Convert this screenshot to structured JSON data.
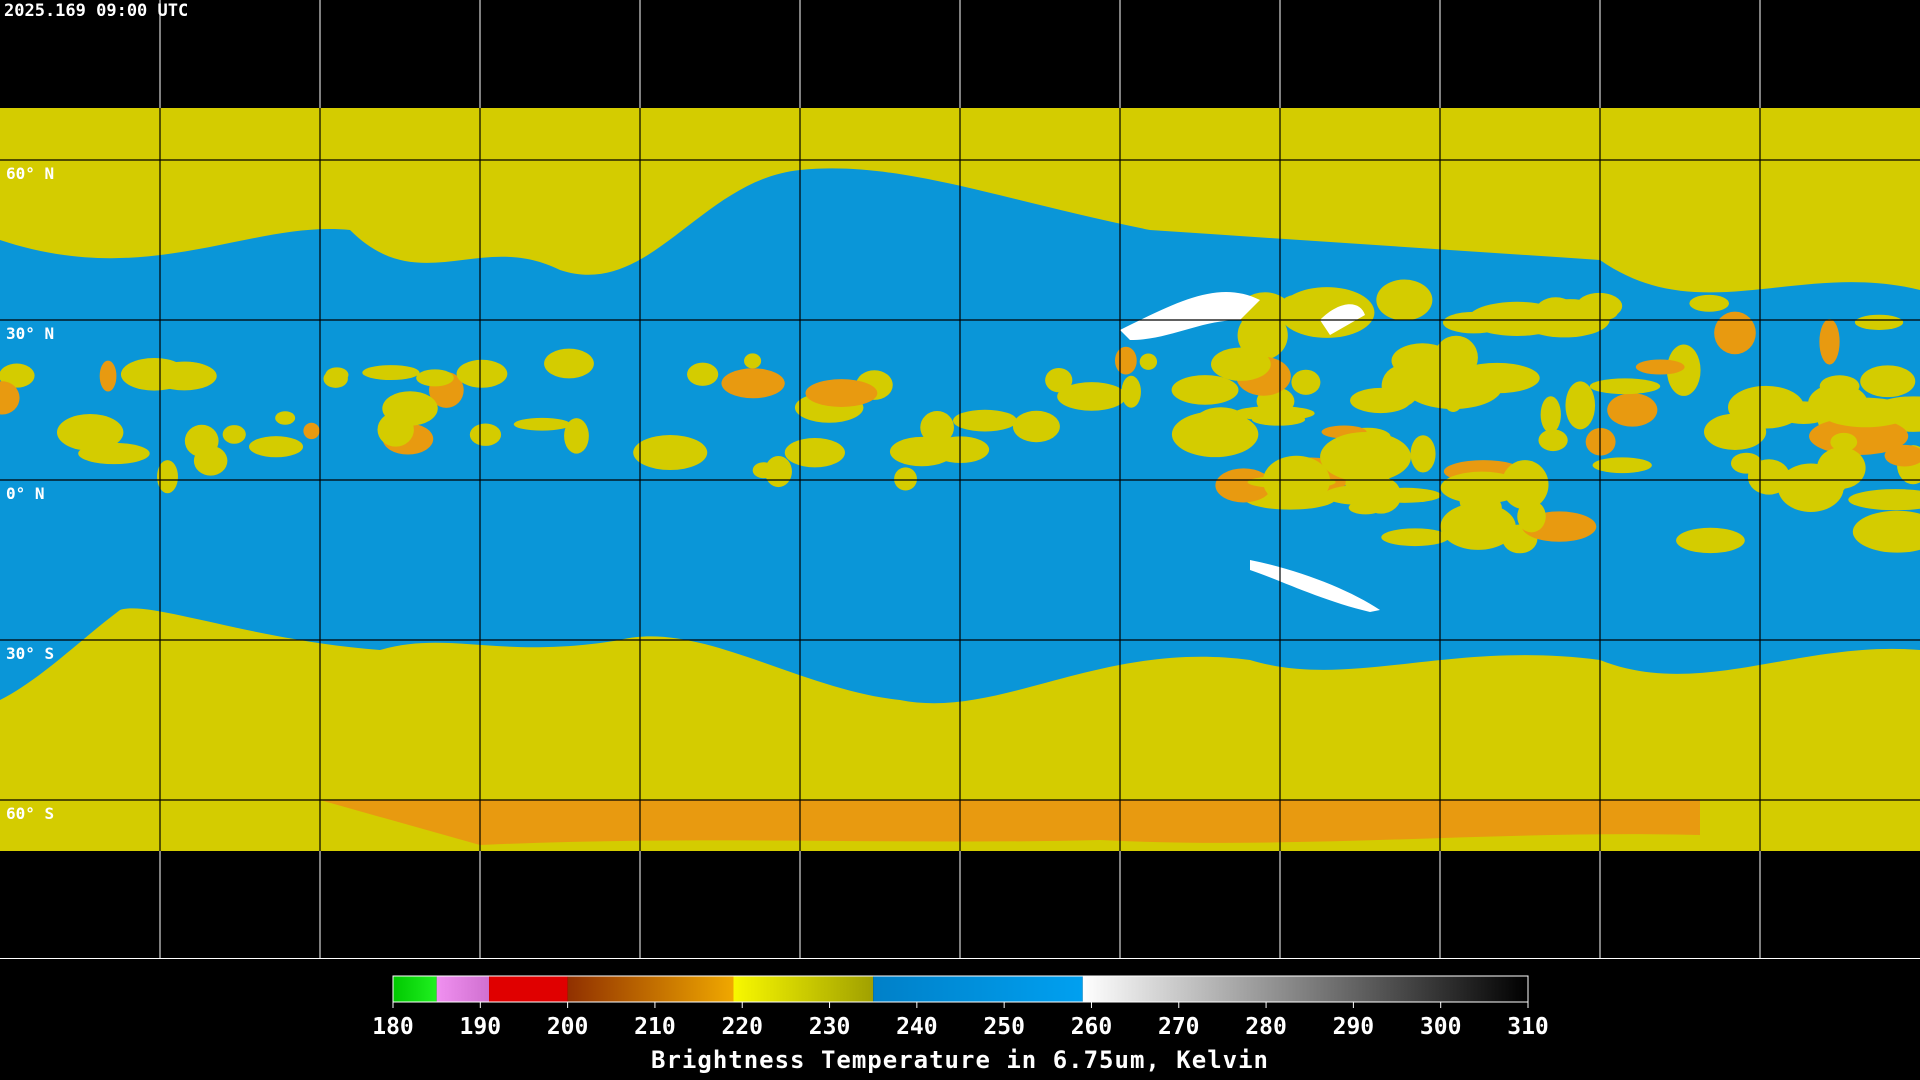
{
  "header": {
    "timestamp": "2025.169 09:00 UTC"
  },
  "map": {
    "lat_labels": [
      "60° N",
      "30° N",
      "0° N",
      "30° S",
      "60° S"
    ]
  },
  "colorbar": {
    "title": "Brightness Temperature in 6.75um, Kelvin",
    "range": [
      180,
      310
    ],
    "ticks": [
      180,
      190,
      200,
      210,
      220,
      230,
      240,
      250,
      260,
      270,
      280,
      290,
      300,
      310
    ],
    "segments": [
      {
        "from": 180,
        "to": 185,
        "color_from": "#00c800",
        "color_to": "#20f020"
      },
      {
        "from": 185,
        "to": 191,
        "color_from": "#f090f0",
        "color_to": "#d070d0"
      },
      {
        "from": 191,
        "to": 200,
        "color_from": "#e00000",
        "color_to": "#e00000"
      },
      {
        "from": 200,
        "to": 219,
        "color_from": "#903000",
        "color_to": "#f0a800"
      },
      {
        "from": 219,
        "to": 235,
        "color_from": "#f8f800",
        "color_to": "#a0a000"
      },
      {
        "from": 235,
        "to": 259,
        "color_from": "#0080c8",
        "color_to": "#00a0f0"
      },
      {
        "from": 259,
        "to": 310,
        "color_from": "#ffffff",
        "color_to": "#000000"
      }
    ]
  }
}
